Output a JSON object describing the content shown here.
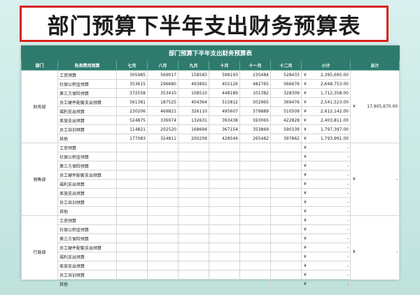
{
  "page_title": "部门预算下半年支出财务预算表",
  "table": {
    "title": "部门预算下半年支出财务预算表",
    "headers": [
      "部门",
      "各类费用预算",
      "七月",
      "八月",
      "九月",
      "十月",
      "十一月",
      "十二月",
      "小计",
      "总计"
    ],
    "currency": "¥",
    "empty_value": "-",
    "departments": [
      {
        "name": "财务部",
        "total": "17,905,670.00",
        "rows": [
          {
            "item": "工资预算",
            "m": [
              "305985",
              "569017",
              "158583",
              "598193",
              "235484",
              "528433"
            ],
            "subtotal": "2,395,695.00"
          },
          {
            "item": "社保公积金预算",
            "m": [
              "353615",
              "296680",
              "493891",
              "455126",
              "482765",
              "566676"
            ],
            "subtotal": "2,648,753.00"
          },
          {
            "item": "第三方保险预算",
            "m": [
              "372558",
              "353410",
              "108510",
              "448189",
              "101382",
              "328309"
            ],
            "subtotal": "1,712,358.00"
          },
          {
            "item": "员工硬件配套支出预算",
            "m": [
              "561381",
              "187525",
              "404364",
              "515812",
              "502965",
              "369476"
            ],
            "subtotal": "2,541,523.00"
          },
          {
            "item": "福利支出预算",
            "m": [
              "230206",
              "469821",
              "326110",
              "495607",
              "579889",
              "510509"
            ],
            "subtotal": "2,612,142.00"
          },
          {
            "item": "差旅支出预算",
            "m": [
              "524875",
              "336974",
              "132631",
              "393438",
              "593065",
              "422828"
            ],
            "subtotal": "2,403,811.00"
          },
          {
            "item": "员工培训预算",
            "m": [
              "114821",
              "202520",
              "168694",
              "367154",
              "353869",
              "590339"
            ],
            "subtotal": "1,797,397.00"
          },
          {
            "item": "其他",
            "m": [
              "177083",
              "324811",
              "200209",
              "428544",
              "265482",
              "397862"
            ],
            "subtotal": "1,793,991.00"
          }
        ]
      },
      {
        "name": "销售部",
        "total": "-",
        "rows": [
          {
            "item": "工资预算",
            "m": [
              "",
              "",
              "",
              "",
              "",
              ""
            ],
            "subtotal": "-"
          },
          {
            "item": "社保公积金预算",
            "m": [
              "",
              "",
              "",
              "",
              "",
              ""
            ],
            "subtotal": "-"
          },
          {
            "item": "第三方保险预算",
            "m": [
              "",
              "",
              "",
              "",
              "",
              ""
            ],
            "subtotal": "-"
          },
          {
            "item": "员工硬件配套支出预算",
            "m": [
              "",
              "",
              "",
              "",
              "",
              ""
            ],
            "subtotal": "-"
          },
          {
            "item": "福利支出预算",
            "m": [
              "",
              "",
              "",
              "",
              "",
              ""
            ],
            "subtotal": "-"
          },
          {
            "item": "差旅支出预算",
            "m": [
              "",
              "",
              "",
              "",
              "",
              ""
            ],
            "subtotal": "-"
          },
          {
            "item": "员工培训预算",
            "m": [
              "",
              "",
              "",
              "",
              "",
              ""
            ],
            "subtotal": "-"
          },
          {
            "item": "其他",
            "m": [
              "",
              "",
              "",
              "",
              "",
              ""
            ],
            "subtotal": "-"
          }
        ]
      },
      {
        "name": "行政部",
        "total": "-",
        "rows": [
          {
            "item": "工资预算",
            "m": [
              "",
              "",
              "",
              "",
              "",
              ""
            ],
            "subtotal": "-"
          },
          {
            "item": "社保公积金预算",
            "m": [
              "",
              "",
              "",
              "",
              "",
              ""
            ],
            "subtotal": "-"
          },
          {
            "item": "第三方保险预算",
            "m": [
              "",
              "",
              "",
              "",
              "",
              ""
            ],
            "subtotal": "-"
          },
          {
            "item": "员工硬件配套支出预算",
            "m": [
              "",
              "",
              "",
              "",
              "",
              ""
            ],
            "subtotal": "-"
          },
          {
            "item": "福利支出预算",
            "m": [
              "",
              "",
              "",
              "",
              "",
              ""
            ],
            "subtotal": "-"
          },
          {
            "item": "差旅支出预算",
            "m": [
              "",
              "",
              "",
              "",
              "",
              ""
            ],
            "subtotal": "-"
          },
          {
            "item": "员工培训预算",
            "m": [
              "",
              "",
              "",
              "",
              "",
              ""
            ],
            "subtotal": "-"
          },
          {
            "item": "其他",
            "m": [
              "",
              "",
              "",
              "",
              "",
              ""
            ],
            "subtotal": "-"
          }
        ]
      }
    ]
  },
  "colors": {
    "header_bg": "#2e7b6e",
    "banner_border": "#d8231d",
    "background": "#c9e9e4"
  }
}
